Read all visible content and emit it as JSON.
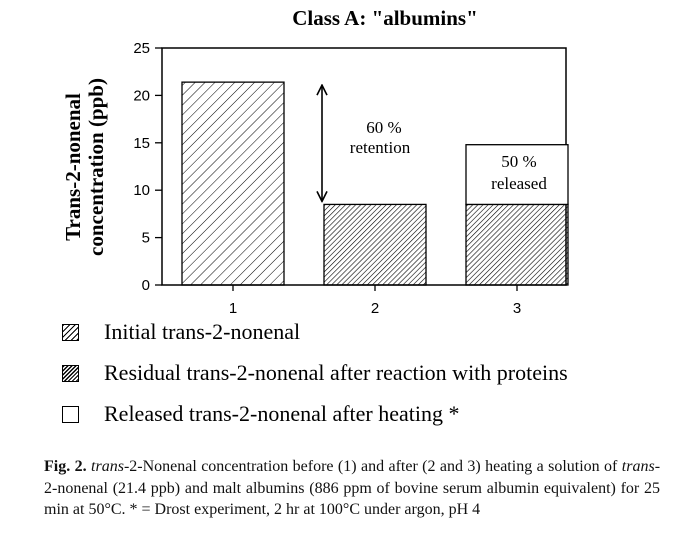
{
  "chart_data": {
    "type": "bar",
    "title": "Class A:  \"albumins\"",
    "ylabel_line1": "Trans-2-nonenal",
    "ylabel_line2": "concentration  (ppb)",
    "xlabel": "",
    "ylim": [
      0,
      25
    ],
    "yticks": [
      0,
      5,
      10,
      15,
      20,
      25
    ],
    "categories": [
      "1",
      "2",
      "3"
    ],
    "series": [
      {
        "name": "Initial trans-2-nonenal",
        "pattern": "light-hatch",
        "values": [
          21.4,
          0,
          0
        ]
      },
      {
        "name": "Residual trans-2-nonenal after reaction with proteins",
        "pattern": "dense-hatch",
        "values": [
          0,
          8.5,
          8.5
        ]
      },
      {
        "name": "Released trans-2-nonenal after heating *",
        "pattern": "empty",
        "values": [
          0,
          0,
          6.3
        ]
      }
    ],
    "stacked": true,
    "annotations": [
      {
        "text_line1": "60 %",
        "text_line2": "retention",
        "type": "double-arrow",
        "from": 21.4,
        "to": 8.5,
        "category": "2"
      },
      {
        "text_line1": "50 %",
        "text_line2": "released",
        "type": "box-label",
        "category": "3"
      }
    ],
    "grid": false,
    "legend_position": "below"
  },
  "legend": [
    {
      "label": "Initial trans-2-nonenal"
    },
    {
      "label": "Residual trans-2-nonenal after reaction with proteins"
    },
    {
      "label": "Released trans-2-nonenal after heating *"
    }
  ],
  "caption": {
    "fig_label": "Fig. 2.",
    "segments": [
      {
        "text": "trans",
        "italic": true
      },
      {
        "text": "-2-Nonenal concentration before (1) and after (2 and 3) heating a solution of "
      },
      {
        "text": "trans",
        "italic": true
      },
      {
        "text": "-2-nonenal (21.4 ppb) and malt albumins (886 ppm of bovine serum albumin equivalent) for 25 min at 50°C. * = Drost experiment, 2 hr at 100°C under argon, pH 4"
      }
    ]
  }
}
